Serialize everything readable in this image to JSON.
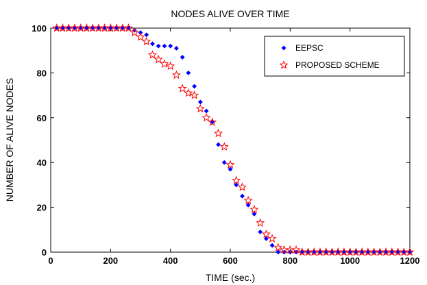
{
  "chart_data": {
    "type": "scatter",
    "title": "NODES ALIVE OVER TIME",
    "xlabel": "TIME (sec.)",
    "ylabel": "NUMBER OF ALIVE NODES",
    "xlim": [
      0,
      1200
    ],
    "ylim": [
      0,
      100
    ],
    "xticks": [
      0,
      200,
      400,
      600,
      800,
      1000,
      1200
    ],
    "yticks": [
      0,
      20,
      40,
      60,
      80,
      100
    ],
    "grid": false,
    "legend_position": "top-right",
    "series": [
      {
        "name": "EEPSC",
        "marker": "diamond",
        "color": "#0000ff",
        "x": [
          20,
          40,
          60,
          80,
          100,
          120,
          140,
          160,
          180,
          200,
          220,
          240,
          260,
          280,
          300,
          320,
          340,
          360,
          380,
          400,
          420,
          440,
          460,
          480,
          500,
          520,
          540,
          560,
          580,
          600,
          620,
          640,
          660,
          680,
          700,
          720,
          740,
          760,
          780,
          800,
          820,
          840,
          860,
          880,
          900,
          920,
          940,
          960,
          980,
          1000,
          1020,
          1040,
          1060,
          1080,
          1100,
          1120,
          1140,
          1160,
          1180,
          1200
        ],
        "y": [
          100,
          100,
          100,
          100,
          100,
          100,
          100,
          100,
          100,
          100,
          100,
          100,
          100,
          99,
          98,
          97,
          93,
          92,
          92,
          92,
          91,
          87,
          80,
          74,
          67,
          63,
          58,
          48,
          40,
          37,
          30,
          25,
          21,
          17,
          9,
          6,
          3,
          0,
          0,
          0,
          0,
          0,
          0,
          0,
          0,
          0,
          0,
          0,
          0,
          0,
          0,
          0,
          0,
          0,
          0,
          0,
          0,
          0,
          0,
          0
        ]
      },
      {
        "name": "PROPOSED SCHEME",
        "marker": "star",
        "color": "#ff0000",
        "x": [
          20,
          40,
          60,
          80,
          100,
          120,
          140,
          160,
          180,
          200,
          220,
          240,
          260,
          280,
          300,
          320,
          340,
          360,
          380,
          400,
          420,
          440,
          460,
          480,
          500,
          520,
          540,
          560,
          580,
          600,
          620,
          640,
          660,
          680,
          700,
          720,
          740,
          760,
          780,
          800,
          820,
          840,
          860,
          880,
          900,
          920,
          940,
          960,
          980,
          1000,
          1020,
          1040,
          1060,
          1080,
          1100,
          1120,
          1140,
          1160,
          1180,
          1200
        ],
        "y": [
          100,
          100,
          100,
          100,
          100,
          100,
          100,
          100,
          100,
          100,
          100,
          100,
          100,
          98,
          96,
          94,
          88,
          86,
          84,
          83,
          79,
          73,
          71,
          70,
          64,
          60,
          58,
          53,
          47,
          39,
          32,
          29,
          23,
          19,
          13,
          8,
          6,
          2,
          1,
          1,
          1,
          0,
          0,
          0,
          0,
          0,
          0,
          0,
          0,
          0,
          0,
          0,
          0,
          0,
          0,
          0,
          0,
          0,
          0,
          0
        ]
      }
    ]
  }
}
